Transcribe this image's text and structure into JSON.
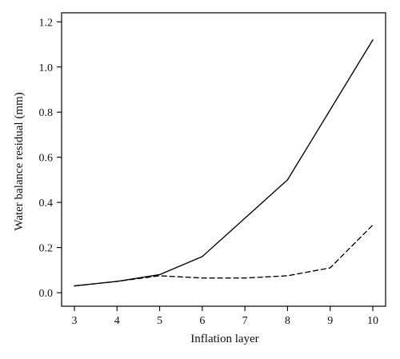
{
  "chart_data": {
    "type": "line",
    "title": "",
    "xlabel": "Inflation layer",
    "ylabel": "Water balance residual (mm)",
    "xlim": [
      2.7,
      10.3
    ],
    "ylim": [
      -0.06,
      1.24
    ],
    "xticks": [
      3,
      4,
      5,
      6,
      7,
      8,
      9,
      10
    ],
    "xtick_labels": [
      "3",
      "4",
      "5",
      "6",
      "7",
      "8",
      "9",
      "10"
    ],
    "yticks": [
      0.0,
      0.2,
      0.4,
      0.6,
      0.8,
      1.0,
      1.2
    ],
    "ytick_labels": [
      "0.0",
      "0.2",
      "0.4",
      "0.6",
      "0.8",
      "1.0",
      "1.2"
    ],
    "x": [
      3,
      4,
      5,
      6,
      7,
      8,
      9,
      10
    ],
    "series": [
      {
        "values": [
          0.03,
          0.05,
          0.08,
          0.16,
          0.33,
          0.5,
          0.81,
          1.12
        ],
        "line_style": "solid",
        "color": "#000000"
      },
      {
        "values": [
          0.03,
          0.05,
          0.075,
          0.065,
          0.065,
          0.075,
          0.11,
          0.3
        ],
        "line_style": "dashed",
        "color": "#000000"
      }
    ],
    "grid": false,
    "legend": "none"
  }
}
